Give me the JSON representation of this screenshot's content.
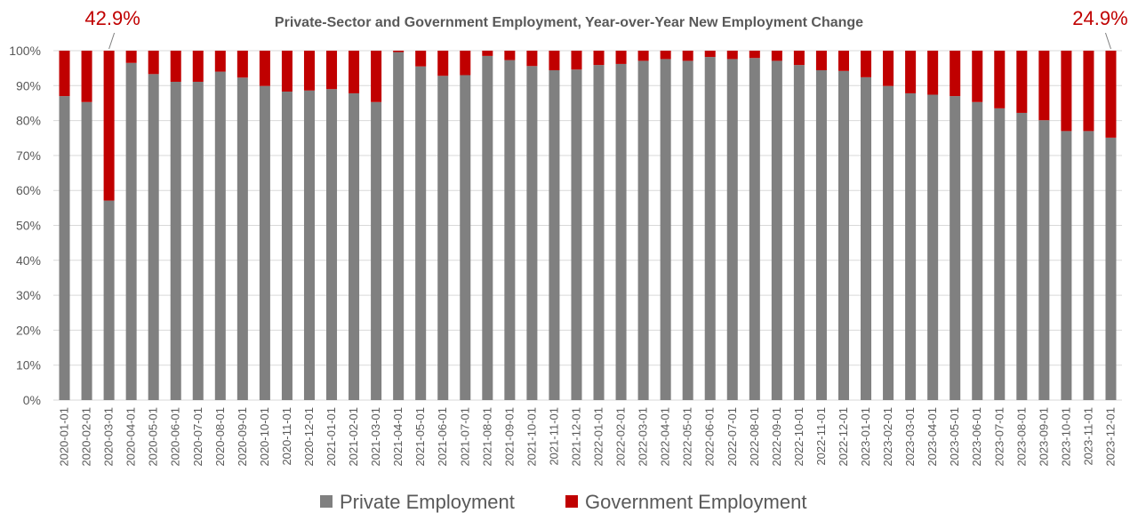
{
  "chart_data": {
    "type": "bar",
    "stacked": "percent",
    "title": "Private-Sector and Government Employment, Year-over-Year New Employment Change",
    "xlabel": "",
    "ylabel": "",
    "ylim": [
      0,
      100
    ],
    "y_ticks": [
      "0%",
      "10%",
      "20%",
      "30%",
      "40%",
      "50%",
      "60%",
      "70%",
      "80%",
      "90%",
      "100%"
    ],
    "grid": true,
    "legend_position": "bottom",
    "categories": [
      "2020-01-01",
      "2020-02-01",
      "2020-03-01",
      "2020-04-01",
      "2020-05-01",
      "2020-06-01",
      "2020-07-01",
      "2020-08-01",
      "2020-09-01",
      "2020-10-01",
      "2020-11-01",
      "2020-12-01",
      "2021-01-01",
      "2021-02-01",
      "2021-03-01",
      "2021-04-01",
      "2021-05-01",
      "2021-06-01",
      "2021-07-01",
      "2021-08-01",
      "2021-09-01",
      "2021-10-01",
      "2021-11-01",
      "2021-12-01",
      "2022-01-01",
      "2022-02-01",
      "2022-03-01",
      "2022-04-01",
      "2022-05-01",
      "2022-06-01",
      "2022-07-01",
      "2022-08-01",
      "2022-09-01",
      "2022-10-01",
      "2022-11-01",
      "2022-12-01",
      "2023-01-01",
      "2023-02-01",
      "2023-03-01",
      "2023-04-01",
      "2023-05-01",
      "2023-06-01",
      "2023-07-01",
      "2023-08-01",
      "2023-09-01",
      "2023-10-01",
      "2023-11-01",
      "2023-12-01"
    ],
    "series": [
      {
        "name": "Private Employment",
        "color": "#808080",
        "values": [
          87.0,
          85.3,
          57.1,
          96.5,
          93.3,
          91.1,
          91.1,
          94.0,
          92.3,
          89.9,
          88.3,
          88.6,
          89.0,
          87.8,
          85.3,
          99.6,
          95.5,
          92.8,
          93.0,
          98.5,
          97.3,
          95.6,
          94.4,
          94.6,
          95.9,
          96.2,
          97.1,
          97.6,
          97.1,
          98.2,
          97.6,
          97.9,
          97.1,
          95.9,
          94.4,
          94.2,
          92.4,
          89.9,
          87.8,
          87.4,
          87.0,
          85.3,
          83.5,
          82.2,
          80.1,
          77.0,
          77.0,
          75.1
        ]
      },
      {
        "name": "Government Employment",
        "color": "#C00000",
        "values": [
          13.0,
          14.7,
          42.9,
          3.5,
          6.7,
          8.9,
          8.9,
          6.0,
          7.7,
          10.1,
          11.7,
          11.4,
          11.0,
          12.2,
          14.7,
          0.4,
          4.5,
          7.2,
          7.0,
          1.5,
          2.7,
          4.4,
          5.6,
          5.4,
          4.1,
          3.8,
          2.9,
          2.4,
          2.9,
          1.8,
          2.4,
          2.1,
          2.9,
          4.1,
          5.6,
          5.8,
          7.6,
          10.1,
          12.2,
          12.6,
          13.0,
          14.7,
          16.5,
          17.8,
          19.9,
          23.0,
          23.0,
          24.9
        ]
      }
    ],
    "annotations": [
      {
        "text": "42.9%",
        "category": "2020-03-01",
        "color": "#C00000"
      },
      {
        "text": "24.9%",
        "category": "2023-12-01",
        "color": "#C00000"
      }
    ]
  }
}
